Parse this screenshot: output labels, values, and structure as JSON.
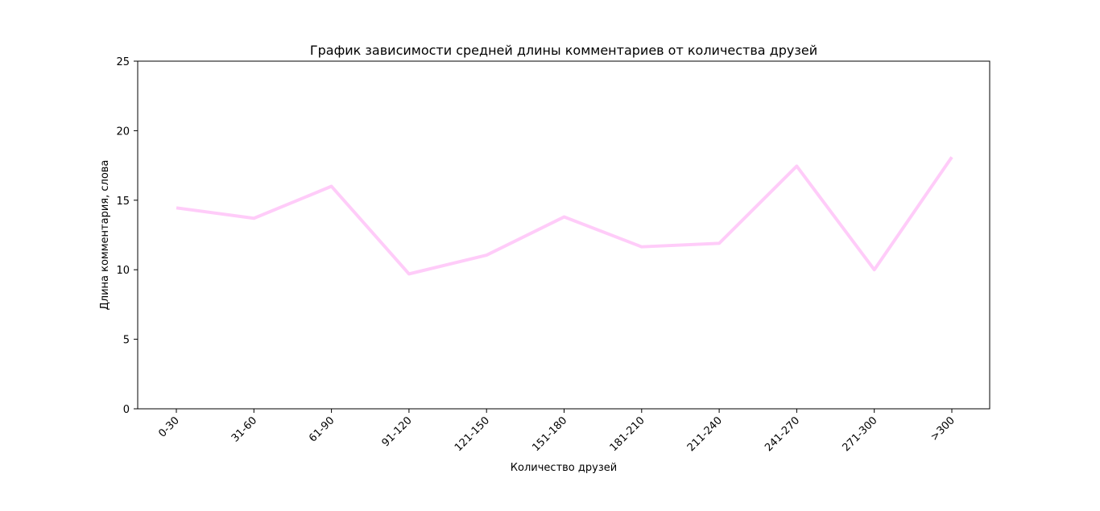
{
  "chart_data": {
    "type": "line",
    "title": "График зависимости средней длины комментариев от количества друзей",
    "xlabel": "Количество друзей",
    "ylabel": "Длина комментария, слова",
    "categories": [
      "0-30",
      "31-60",
      "61-90",
      "91-120",
      "121-150",
      "151-180",
      "181-210",
      "211-240",
      "241-270",
      "271-300",
      ">300"
    ],
    "series": [
      {
        "values": [
          14.45,
          13.7,
          16.0,
          9.7,
          11.05,
          13.8,
          11.65,
          11.9,
          17.45,
          10.0,
          18.1
        ],
        "color": "#ffccf9"
      }
    ],
    "ylim": [
      0,
      25
    ],
    "yticks": [
      0,
      5,
      10,
      15,
      20,
      25
    ],
    "grid": false,
    "legend": "none"
  }
}
